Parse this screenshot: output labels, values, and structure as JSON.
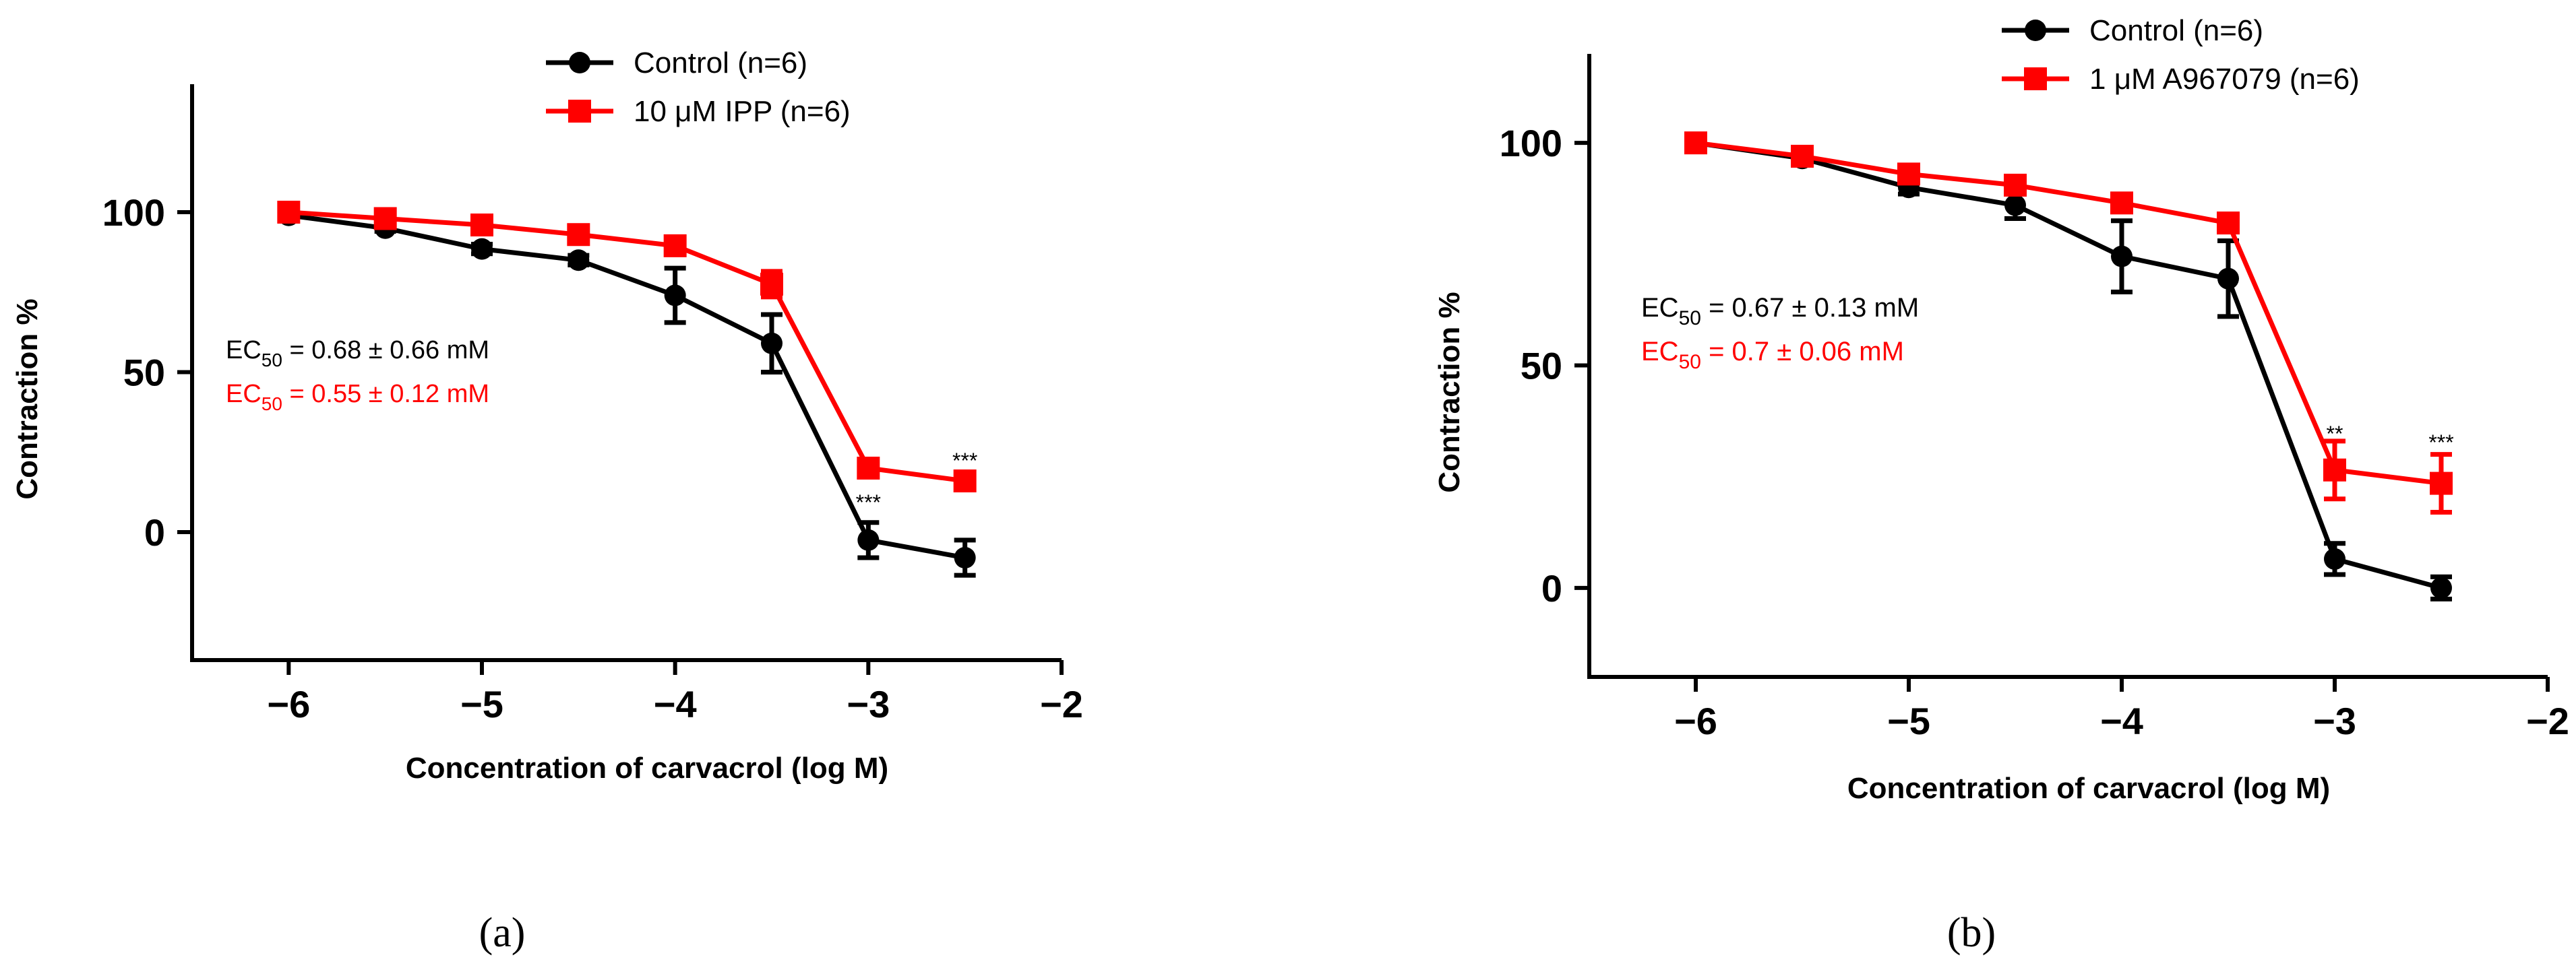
{
  "chart_data": [
    {
      "type": "line",
      "panel_label": "(a)",
      "xlabel": "Concentration of carvacrol (log M)",
      "ylabel": "Contraction %",
      "xlim": [
        -6.5,
        -2
      ],
      "ylim": [
        -40,
        140
      ],
      "x_ticks": [
        -6,
        -5,
        -4,
        -3,
        -2
      ],
      "x_tick_labels": [
        "−6",
        "−5",
        "−4",
        "−3",
        "−2"
      ],
      "y_ticks": [
        0,
        50,
        100
      ],
      "y_tick_labels": [
        "0",
        "50",
        "100"
      ],
      "legend_position": "top-center",
      "series": [
        {
          "name": "Control (n=6)",
          "color": "#000000",
          "marker": "circle",
          "x": [
            -6,
            -5.5,
            -5,
            -4.5,
            -4,
            -3.5,
            -3,
            -2.5
          ],
          "values": [
            99,
            95,
            88.5,
            85,
            74,
            59,
            -2.5,
            -8
          ],
          "errors": [
            1,
            1,
            1.5,
            1.5,
            8.5,
            9,
            5.5,
            5.5
          ]
        },
        {
          "name": "10 μM IPP  (n=6)",
          "color": "#ff0000",
          "marker": "square",
          "x": [
            -6,
            -5.5,
            -5,
            -4.5,
            -4,
            -3.5,
            -3,
            -2.5
          ],
          "values": [
            100,
            98,
            96,
            93,
            89.5,
            77.5,
            20,
            16
          ],
          "errors": [
            1,
            1,
            1.5,
            1.5,
            2.5,
            4,
            1.5,
            1.5
          ]
        }
      ],
      "ec50_labels": [
        {
          "prefix": "EC",
          "sub": "50",
          "suffix": " = 0.68 ± 0.66 mM",
          "color": "#000000"
        },
        {
          "prefix": "EC",
          "sub": "50",
          "suffix": " = 0.55 ± 0.12 mM",
          "color": "#ff0000"
        }
      ],
      "annotations": [
        {
          "text": "***",
          "x": -3,
          "y": 7
        },
        {
          "text": "***",
          "x": -2.5,
          "y": 20
        }
      ]
    },
    {
      "type": "line",
      "panel_label": "(b)",
      "xlabel": "Concentration of carvacrol (log M)",
      "ylabel": "Contraction %",
      "xlim": [
        -6.5,
        -2
      ],
      "ylim": [
        -20,
        120
      ],
      "x_ticks": [
        -6,
        -5,
        -4,
        -3,
        -2
      ],
      "x_tick_labels": [
        "−6",
        "−5",
        "−4",
        "−3",
        "−2"
      ],
      "y_ticks": [
        0,
        50,
        100
      ],
      "y_tick_labels": [
        "0",
        "50",
        "100"
      ],
      "legend_position": "top-center",
      "series": [
        {
          "name": "Control (n=6)",
          "color": "#000000",
          "marker": "circle",
          "x": [
            -6,
            -5.5,
            -5,
            -4.5,
            -4,
            -3.5,
            -3,
            -2.5
          ],
          "values": [
            100,
            96.5,
            90,
            86,
            74.5,
            69.5,
            6.5,
            0
          ],
          "errors": [
            1,
            1.5,
            1.5,
            3,
            8,
            8.5,
            3.5,
            2.5
          ]
        },
        {
          "name": "1 μM A967079 (n=6)",
          "color": "#ff0000",
          "marker": "square",
          "x": [
            -6,
            -5.5,
            -5,
            -4.5,
            -4,
            -3.5,
            -3,
            -2.5
          ],
          "values": [
            100,
            97,
            93,
            90.5,
            86.5,
            82,
            26.5,
            23.5
          ],
          "errors": [
            1,
            1,
            1.5,
            1.5,
            1.5,
            2,
            6.5,
            6.5
          ]
        }
      ],
      "ec50_labels": [
        {
          "prefix": "EC",
          "sub": "50",
          "suffix": " = 0.67 ± 0.13 mM",
          "color": "#000000"
        },
        {
          "prefix": "EC",
          "sub": "50",
          "suffix": " = 0.7 ± 0.06 mM",
          "color": "#ff0000"
        }
      ],
      "annotations": [
        {
          "text": "**",
          "x": -3,
          "y": 33
        },
        {
          "text": "***",
          "x": -2.5,
          "y": 31
        }
      ]
    }
  ]
}
